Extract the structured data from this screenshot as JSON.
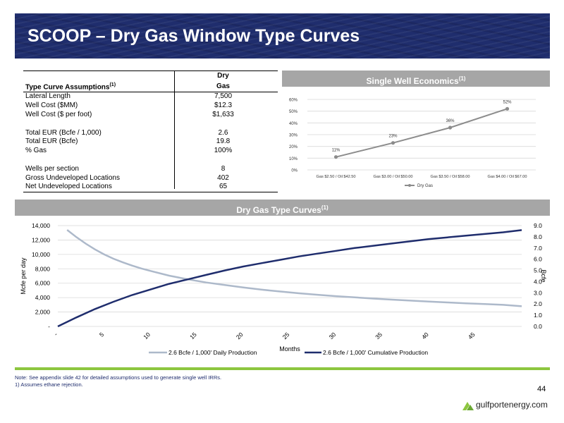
{
  "title": "SCOOP – Dry Gas Window Type Curves",
  "assumptions": {
    "header_col1_line1": "",
    "header_col1_line2": "Type Curve Assumptions",
    "header_col1_sup": "(1)",
    "header_col2_line1": "Dry",
    "header_col2_line2": "Gas",
    "rows": [
      {
        "label": "Lateral Length",
        "value": "7,500"
      },
      {
        "label": "Well Cost ($MM)",
        "value": "$12.3"
      },
      {
        "label": "Well Cost ($ per foot)",
        "value": "$1,633"
      },
      {
        "label": "",
        "value": ""
      },
      {
        "label": "Total EUR (Bcfe / 1,000)",
        "value": "2.6"
      },
      {
        "label": "Total EUR (Bcfe)",
        "value": "19.8"
      },
      {
        "label": "% Gas",
        "value": "100%"
      },
      {
        "label": "",
        "value": ""
      },
      {
        "label": "Wells per section",
        "value": "8"
      },
      {
        "label": "Gross Undeveloped Locations",
        "value": "402"
      },
      {
        "label": "Net Undeveloped Locations",
        "value": "65"
      }
    ]
  },
  "economics_header": {
    "text": "Single Well Economics",
    "sup": "(1)"
  },
  "typecurve_header": {
    "text": "Dry Gas Type Curves",
    "sup": "(1)"
  },
  "note": {
    "line1": "Note: See appendix slide 42 for detailed assumptions used to generate single well IRRs.",
    "line2": "1)      Assumes ethane rejection."
  },
  "page_number": "44",
  "logo_text": "gulfportenergy.com",
  "colors": {
    "banner": "#1f2d6d",
    "header_gray": "#a6a6a6",
    "green": "#8dc63f",
    "dark_series": "#1f2d6d",
    "light_series": "#adb9ca",
    "econ_series": "#8c8c8c"
  },
  "chart_data": [
    {
      "type": "line",
      "title": "",
      "categories": [
        "Gas $2.50 / Oil $42.50",
        "Gas $3.00 / Oil $50.00",
        "Gas $3.50 / Oil $58.00",
        "Gas $4.00 / Oil $67.00"
      ],
      "series": [
        {
          "name": "Dry Gas",
          "values": [
            0.11,
            0.23,
            0.36,
            0.52
          ],
          "labels": [
            "11%",
            "23%",
            "36%",
            "52%"
          ]
        }
      ],
      "ylim": [
        0,
        0.6
      ],
      "yticks": [
        "0%",
        "10%",
        "20%",
        "30%",
        "40%",
        "50%",
        "60%"
      ],
      "grid": true,
      "legend": "bottom"
    },
    {
      "type": "line",
      "title": "",
      "xlabel": "Months",
      "ylabel": "Mcfe per day",
      "y2label": "Bcfe",
      "xticks": [
        "-",
        "5",
        "10",
        "15",
        "20",
        "25",
        "30",
        "35",
        "40",
        "45"
      ],
      "xlim": [
        0,
        50
      ],
      "ylim": [
        0,
        14000
      ],
      "y2lim": [
        0,
        9
      ],
      "yticks": [
        "-",
        "2,000",
        "4,000",
        "6,000",
        "8,000",
        "10,000",
        "12,000",
        "14,000"
      ],
      "y2ticks": [
        "0.0",
        "1.0",
        "2.0",
        "3.0",
        "4.0",
        "5.0",
        "6.0",
        "7.0",
        "8.0",
        "9.0"
      ],
      "grid": true,
      "legend": "bottom",
      "series": [
        {
          "name": "2.6 Bcfe / 1,000' Daily Production",
          "axis": "left",
          "x": [
            1,
            2,
            3,
            4,
            5,
            6,
            7,
            8,
            9,
            10,
            12,
            14,
            16,
            18,
            20,
            22,
            24,
            26,
            28,
            30,
            32,
            34,
            36,
            38,
            40,
            42,
            44,
            46,
            48,
            50
          ],
          "values": [
            13400,
            12400,
            11500,
            10700,
            10000,
            9400,
            8900,
            8450,
            8050,
            7700,
            7050,
            6550,
            6100,
            5750,
            5400,
            5100,
            4850,
            4600,
            4400,
            4200,
            4030,
            3870,
            3720,
            3580,
            3450,
            3330,
            3210,
            3100,
            3000,
            2800
          ]
        },
        {
          "name": "2.6 Bcfe / 1,000' Cumulative Production",
          "axis": "right",
          "x": [
            0,
            2,
            4,
            6,
            8,
            10,
            12,
            14,
            16,
            18,
            20,
            22,
            24,
            26,
            28,
            30,
            32,
            34,
            36,
            38,
            40,
            42,
            44,
            46,
            48,
            50
          ],
          "values": [
            0.0,
            0.8,
            1.55,
            2.2,
            2.8,
            3.3,
            3.8,
            4.2,
            4.6,
            5.0,
            5.35,
            5.65,
            5.95,
            6.25,
            6.5,
            6.75,
            7.0,
            7.2,
            7.4,
            7.6,
            7.8,
            7.95,
            8.1,
            8.25,
            8.4,
            8.6
          ]
        }
      ]
    }
  ]
}
